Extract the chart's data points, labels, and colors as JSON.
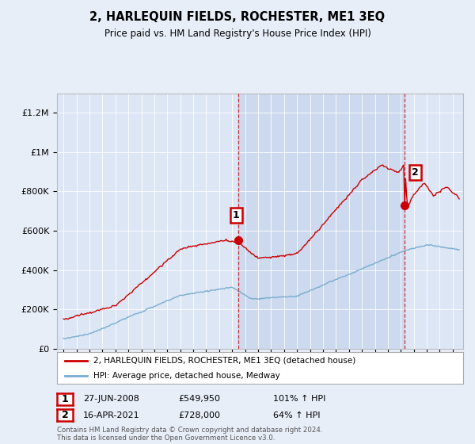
{
  "title": "2, HARLEQUIN FIELDS, ROCHESTER, ME1 3EQ",
  "subtitle": "Price paid vs. HM Land Registry's House Price Index (HPI)",
  "legend_label_red": "2, HARLEQUIN FIELDS, ROCHESTER, ME1 3EQ (detached house)",
  "legend_label_blue": "HPI: Average price, detached house, Medway",
  "annotation1_date": "27-JUN-2008",
  "annotation1_price": "£549,950",
  "annotation1_hpi": "101% ↑ HPI",
  "annotation2_date": "16-APR-2021",
  "annotation2_price": "£728,000",
  "annotation2_hpi": "64% ↑ HPI",
  "footer": "Contains HM Land Registry data © Crown copyright and database right 2024.\nThis data is licensed under the Open Government Licence v3.0.",
  "red_color": "#cc0000",
  "blue_color": "#7aadcf",
  "bg_color": "#e8eef8",
  "plot_bg": "#dce6f5",
  "highlight_bg": "#ccd9ee",
  "ylim": [
    0,
    1300000
  ],
  "yticks": [
    0,
    200000,
    400000,
    600000,
    800000,
    1000000,
    1200000
  ],
  "xlim_start": 1994.5,
  "xlim_end": 2025.8,
  "xticks": [
    1995,
    1996,
    1997,
    1998,
    1999,
    2000,
    2001,
    2002,
    2003,
    2004,
    2005,
    2006,
    2007,
    2008,
    2009,
    2010,
    2011,
    2012,
    2013,
    2014,
    2015,
    2016,
    2017,
    2018,
    2019,
    2020,
    2021,
    2022,
    2023,
    2024,
    2025
  ],
  "sale1_x": 2008.49,
  "sale1_y": 549950,
  "sale2_x": 2021.29,
  "sale2_y": 728000
}
